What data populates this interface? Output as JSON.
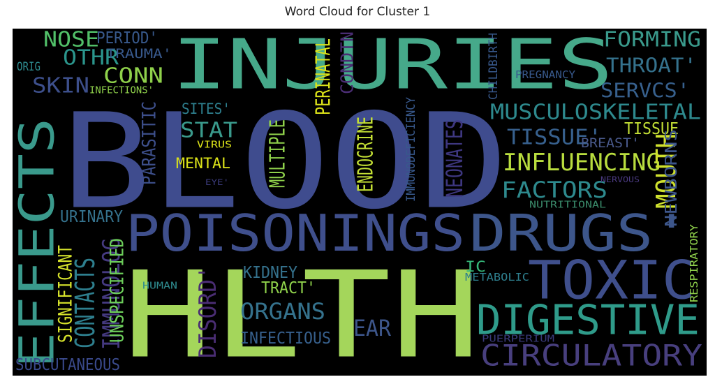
{
  "chart_data": {
    "type": "wordcloud",
    "title": "Word Cloud for Cluster 1",
    "background": "#000000",
    "words": [
      {
        "text": "BLOOD",
        "weight": 100,
        "color": "#3f4c8e",
        "rotate": false
      },
      {
        "text": "HLTH",
        "weight": 98,
        "color": "#a4d65b",
        "rotate": false
      },
      {
        "text": "INJURIES",
        "weight": 70,
        "color": "#46a98a",
        "rotate": false
      },
      {
        "text": "EFFECTS",
        "weight": 56,
        "color": "#3a9a8c",
        "rotate": true
      },
      {
        "text": "POISONINGS",
        "weight": 44,
        "color": "#3f4f8c",
        "rotate": false
      },
      {
        "text": "DRUGS'",
        "weight": 44,
        "color": "#3d568b",
        "rotate": false
      },
      {
        "text": "TOXIC",
        "weight": 43,
        "color": "#3f4f8c",
        "rotate": false
      },
      {
        "text": "DIGESTIVE",
        "weight": 30,
        "color": "#2f9b8a",
        "rotate": false
      },
      {
        "text": "CIRCULATORY",
        "weight": 24,
        "color": "#483f7e",
        "rotate": false
      },
      {
        "text": "MUSCULOSKELETAL",
        "weight": 18,
        "color": "#2e8a8e",
        "rotate": false
      },
      {
        "text": "INFLUENCING",
        "weight": 18,
        "color": "#b9dd3e",
        "rotate": false
      },
      {
        "text": "FORMING",
        "weight": 17,
        "color": "#3a9a8c",
        "rotate": false
      },
      {
        "text": "THROAT'",
        "weight": 17,
        "color": "#35728d",
        "rotate": false
      },
      {
        "text": "SERVCS'",
        "weight": 16,
        "color": "#37608d",
        "rotate": false
      },
      {
        "text": "TISSUE'",
        "weight": 16,
        "color": "#37608d",
        "rotate": false
      },
      {
        "text": "FACTORS",
        "weight": 16,
        "color": "#2e8a8e",
        "rotate": false
      },
      {
        "text": "CONTACTS",
        "weight": 16,
        "color": "#2e7f8e",
        "rotate": true
      },
      {
        "text": "IMMUNOLOG",
        "weight": 16,
        "color": "#453a80",
        "rotate": true
      },
      {
        "text": "ORGANS",
        "weight": 16,
        "color": "#35728d",
        "rotate": false
      },
      {
        "text": "MOUTH",
        "weight": 15,
        "color": "#cfe12e",
        "rotate": true
      },
      {
        "text": "NOSE",
        "weight": 15,
        "color": "#52c069",
        "rotate": false
      },
      {
        "text": "OTHR",
        "weight": 15,
        "color": "#2b958c",
        "rotate": false
      },
      {
        "text": "CONN",
        "weight": 15,
        "color": "#8fd14b",
        "rotate": false
      },
      {
        "text": "SKIN",
        "weight": 15,
        "color": "#3d4f8b",
        "rotate": false
      },
      {
        "text": "STAT",
        "weight": 15,
        "color": "#3a9a8c",
        "rotate": false
      },
      {
        "text": "DISORD'",
        "weight": 15,
        "color": "#4a2d73",
        "rotate": true
      },
      {
        "text": "EAR",
        "weight": 14,
        "color": "#3d568b",
        "rotate": false
      },
      {
        "text": "ENDOCRINE",
        "weight": 12,
        "color": "#c3df35",
        "rotate": true
      },
      {
        "text": "MULTIPLE",
        "weight": 12,
        "color": "#8fd14b",
        "rotate": true
      },
      {
        "text": "NEONATES",
        "weight": 12,
        "color": "#3e3780",
        "rotate": true
      },
      {
        "text": "TISSUE",
        "weight": 12,
        "color": "#c3df35",
        "rotate": false
      },
      {
        "text": "INFECTIOUS",
        "weight": 12,
        "color": "#37608d",
        "rotate": false
      },
      {
        "text": "SUBCUTANEOUS",
        "weight": 11,
        "color": "#3a4a8c",
        "rotate": false
      },
      {
        "text": "PERINATAL",
        "weight": 11,
        "color": "#dce319",
        "rotate": true
      },
      {
        "text": "URINARY",
        "weight": 11,
        "color": "#35728d",
        "rotate": false
      },
      {
        "text": "KIDNEY",
        "weight": 11,
        "color": "#35728d",
        "rotate": false
      },
      {
        "text": "TRACT'",
        "weight": 11,
        "color": "#8fd14b",
        "rotate": false
      },
      {
        "text": "SITES'",
        "weight": 11,
        "color": "#2e7f8e",
        "rotate": false
      },
      {
        "text": "UNSPECIFIED",
        "weight": 11,
        "color": "#6ccd5a",
        "rotate": true
      },
      {
        "text": "SIGNIFICANT",
        "weight": 11,
        "color": "#d6e22b",
        "rotate": true
      },
      {
        "text": "BREAST'",
        "weight": 10,
        "color": "#4a5a8c",
        "rotate": false
      },
      {
        "text": "NEWBORNS",
        "weight": 10,
        "color": "#3d568b",
        "rotate": true
      },
      {
        "text": "MENTAL",
        "weight": 10,
        "color": "#dce319",
        "rotate": false
      },
      {
        "text": "PARASITIC",
        "weight": 10,
        "color": "#3d4f8b",
        "rotate": true
      },
      {
        "text": "CONDTN",
        "weight": 9,
        "color": "#4a2d73",
        "rotate": true
      },
      {
        "text": "IC",
        "weight": 10,
        "color": "#35b779",
        "rotate": false
      },
      {
        "text": "PERIOD'",
        "weight": 10,
        "color": "#38598c",
        "rotate": false
      },
      {
        "text": "TRAUMA'",
        "weight": 10,
        "color": "#38598c",
        "rotate": false
      },
      {
        "text": "ORIG",
        "weight": 9,
        "color": "#2e8a8e",
        "rotate": false
      },
      {
        "text": "INFECTIONS'",
        "weight": 8,
        "color": "#8fd14b",
        "rotate": false
      },
      {
        "text": "VIRUS",
        "weight": 8,
        "color": "#dce319",
        "rotate": false
      },
      {
        "text": "EYE'",
        "weight": 7,
        "color": "#3a3a7a",
        "rotate": false
      },
      {
        "text": "HUMAN",
        "weight": 8,
        "color": "#2e8a8e",
        "rotate": false
      },
      {
        "text": "RESPIRATORY",
        "weight": 8,
        "color": "#8fd14b",
        "rotate": true
      },
      {
        "text": "METABOLIC",
        "weight": 8,
        "color": "#2e7f8e",
        "rotate": false
      },
      {
        "text": "NUTRITIONAL",
        "weight": 7,
        "color": "#3a8a6a",
        "rotate": false
      },
      {
        "text": "NERVOUS",
        "weight": 6,
        "color": "#4a3a80",
        "rotate": false
      },
      {
        "text": "PREGNANCY",
        "weight": 7,
        "color": "#38598c",
        "rotate": false
      },
      {
        "text": "CHILDBIRTH",
        "weight": 7,
        "color": "#38598c",
        "rotate": true
      },
      {
        "text": "IMMUNODEFICIENCY",
        "weight": 7,
        "color": "#38598c",
        "rotate": true
      },
      {
        "text": "PUERPERIUM",
        "weight": 6,
        "color": "#3a3a7a",
        "rotate": false
      }
    ]
  }
}
